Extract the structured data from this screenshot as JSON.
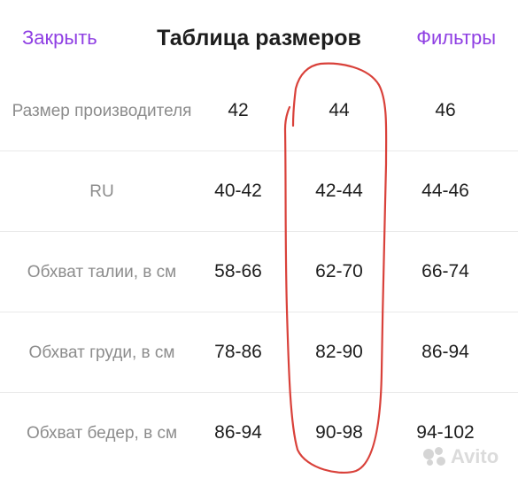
{
  "header": {
    "close_label": "Закрыть",
    "title": "Таблица размеров",
    "filters_label": "Фильтры"
  },
  "size_table": {
    "rows": [
      {
        "label": "Размер производителя",
        "values": [
          "42",
          "44",
          "46"
        ]
      },
      {
        "label": "RU",
        "values": [
          "40-42",
          "42-44",
          "44-46"
        ]
      },
      {
        "label": "Обхват талии, в см",
        "values": [
          "58-66",
          "62-70",
          "66-74"
        ]
      },
      {
        "label": "Обхват груди, в см",
        "values": [
          "78-86",
          "82-90",
          "86-94"
        ]
      },
      {
        "label": "Обхват бедер, в см",
        "values": [
          "86-94",
          "90-98",
          "94-102"
        ]
      }
    ]
  },
  "annotation": {
    "highlighted_column": "44",
    "color": "#d9413a"
  },
  "watermark": {
    "text": "Avito"
  },
  "colors": {
    "accent": "#8f3fe3",
    "label_gray": "#8c8c8c",
    "value_text": "#1e1e1e",
    "divider": "#e9e9e9"
  }
}
